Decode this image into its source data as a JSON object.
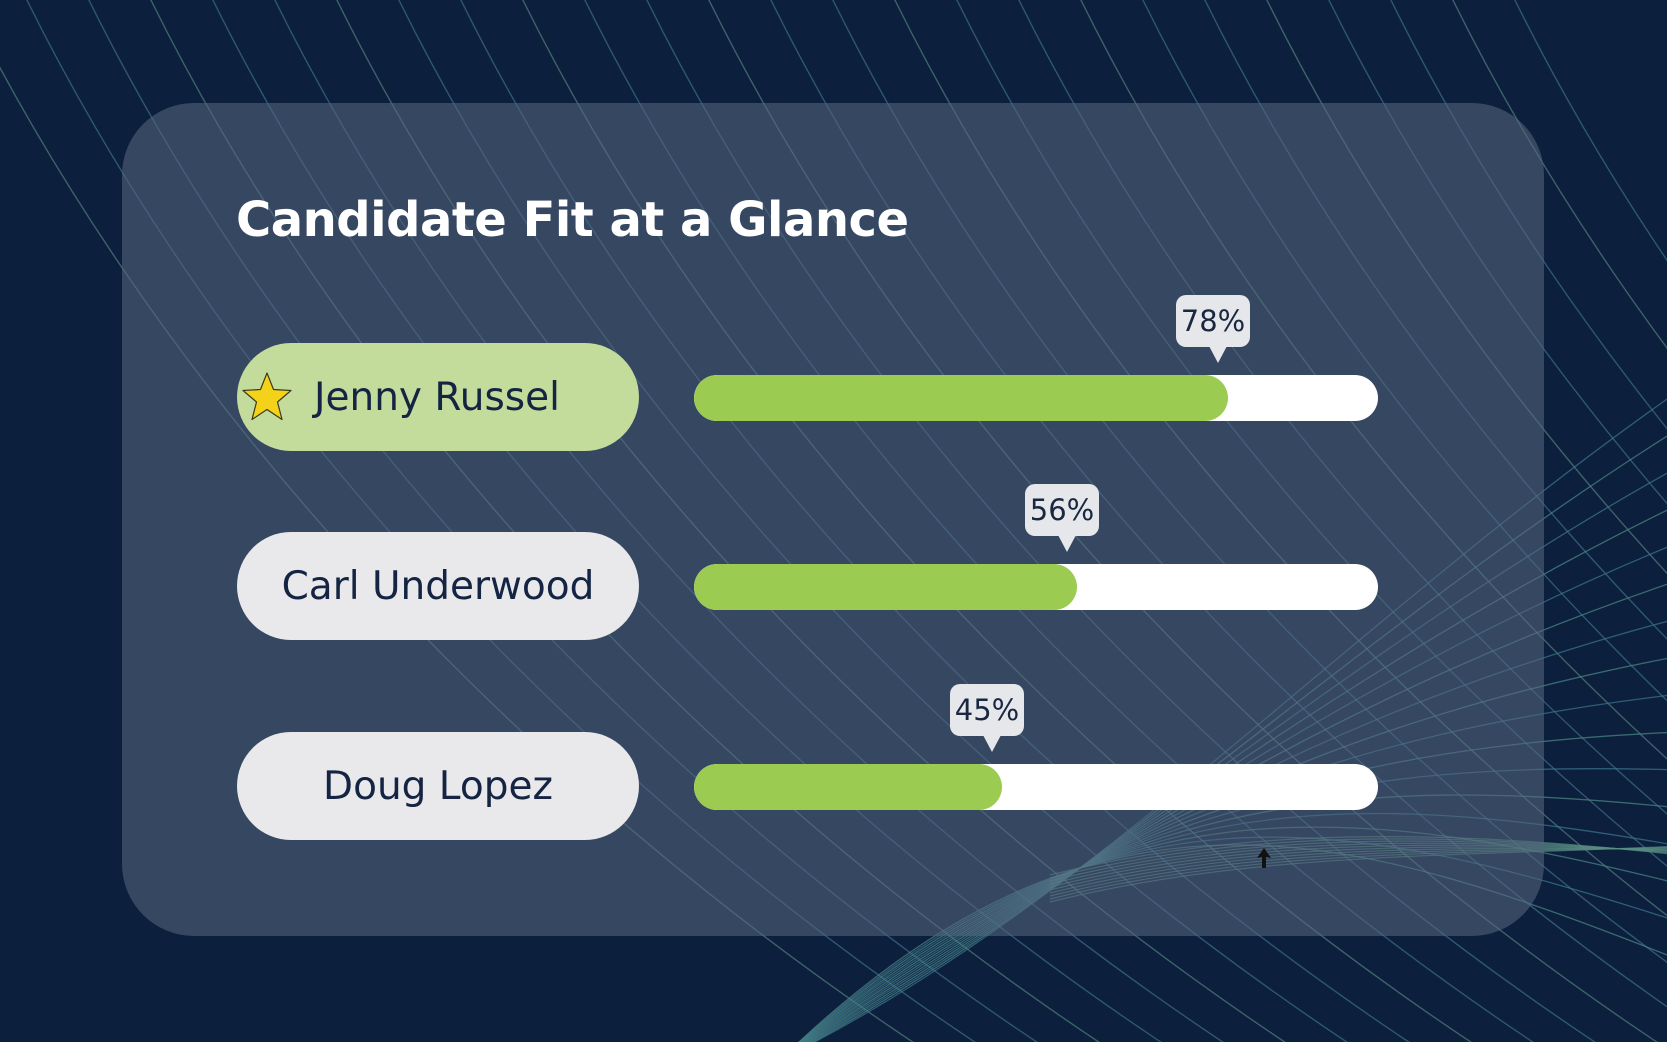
{
  "title": "Candidate Fit at a Glance",
  "chart_data": {
    "type": "bar",
    "orientation": "horizontal",
    "title": "Candidate Fit at a Glance",
    "xlim": [
      0,
      100
    ],
    "unit": "%",
    "categories": [
      "Jenny Russel",
      "Carl Underwood",
      "Doug Lopez"
    ],
    "values": [
      78,
      56,
      45
    ],
    "value_labels": [
      "78%",
      "56%",
      "45%"
    ],
    "highlighted": "Jenny Russel",
    "highlight_icon": "star-icon"
  },
  "colors": {
    "background": "#0c1f3c",
    "card": "#586880",
    "bar_fill": "#9ccb52",
    "bar_track": "#ffffff",
    "pill": "#e9e9eb",
    "pill_selected": "#c3dc9c",
    "star": "#f5d21a",
    "text_dark": "#142442",
    "title_text": "#ffffff"
  }
}
